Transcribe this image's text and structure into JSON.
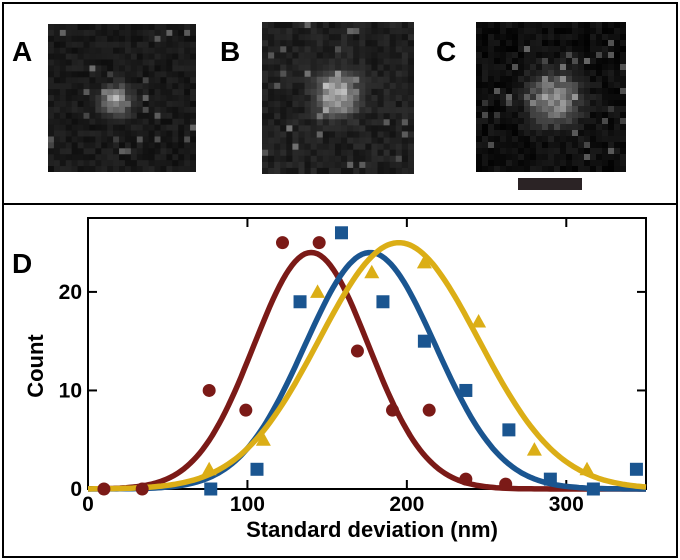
{
  "panels": {
    "a": "A",
    "b": "B",
    "c": "C",
    "d": "D"
  },
  "chart_data": {
    "type": "scatter",
    "panel_label": "D",
    "xlabel": "Standard deviation (nm)",
    "ylabel": "Count",
    "xlim": [
      0,
      350
    ],
    "ylim": [
      0,
      27.5
    ],
    "x_ticks": [
      0,
      100,
      200,
      300
    ],
    "y_ticks": [
      0,
      10,
      20
    ],
    "grid": false,
    "legend": "none",
    "series": [
      {
        "color": "#7b1a17",
        "marker": "circle",
        "points": [
          [
            10,
            0
          ],
          [
            34,
            0
          ],
          [
            76,
            10
          ],
          [
            99,
            8
          ],
          [
            122,
            25
          ],
          [
            145,
            25
          ],
          [
            169,
            14
          ],
          [
            191,
            8
          ],
          [
            214,
            8
          ],
          [
            237,
            1
          ],
          [
            262,
            0.5
          ]
        ],
        "fit": {
          "amplitude": 24,
          "mean": 140,
          "sd": 36
        }
      },
      {
        "color": "#1a5590",
        "marker": "square",
        "points": [
          [
            77,
            0
          ],
          [
            106,
            2
          ],
          [
            133,
            19
          ],
          [
            159,
            26
          ],
          [
            185,
            19
          ],
          [
            211,
            15
          ],
          [
            237,
            10
          ],
          [
            264,
            6
          ],
          [
            290,
            1
          ],
          [
            317,
            0
          ],
          [
            344,
            2
          ]
        ],
        "fit": {
          "amplitude": 24,
          "mean": 177,
          "sd": 41
        }
      },
      {
        "color": "#dbae16",
        "marker": "triangle",
        "points": [
          [
            76,
            2
          ],
          [
            110,
            5
          ],
          [
            144,
            20
          ],
          [
            178,
            22
          ],
          [
            211,
            23
          ],
          [
            245,
            17
          ],
          [
            280,
            4
          ],
          [
            313,
            2
          ]
        ],
        "fit": {
          "amplitude": 25,
          "mean": 195,
          "sd": 50
        }
      }
    ]
  }
}
